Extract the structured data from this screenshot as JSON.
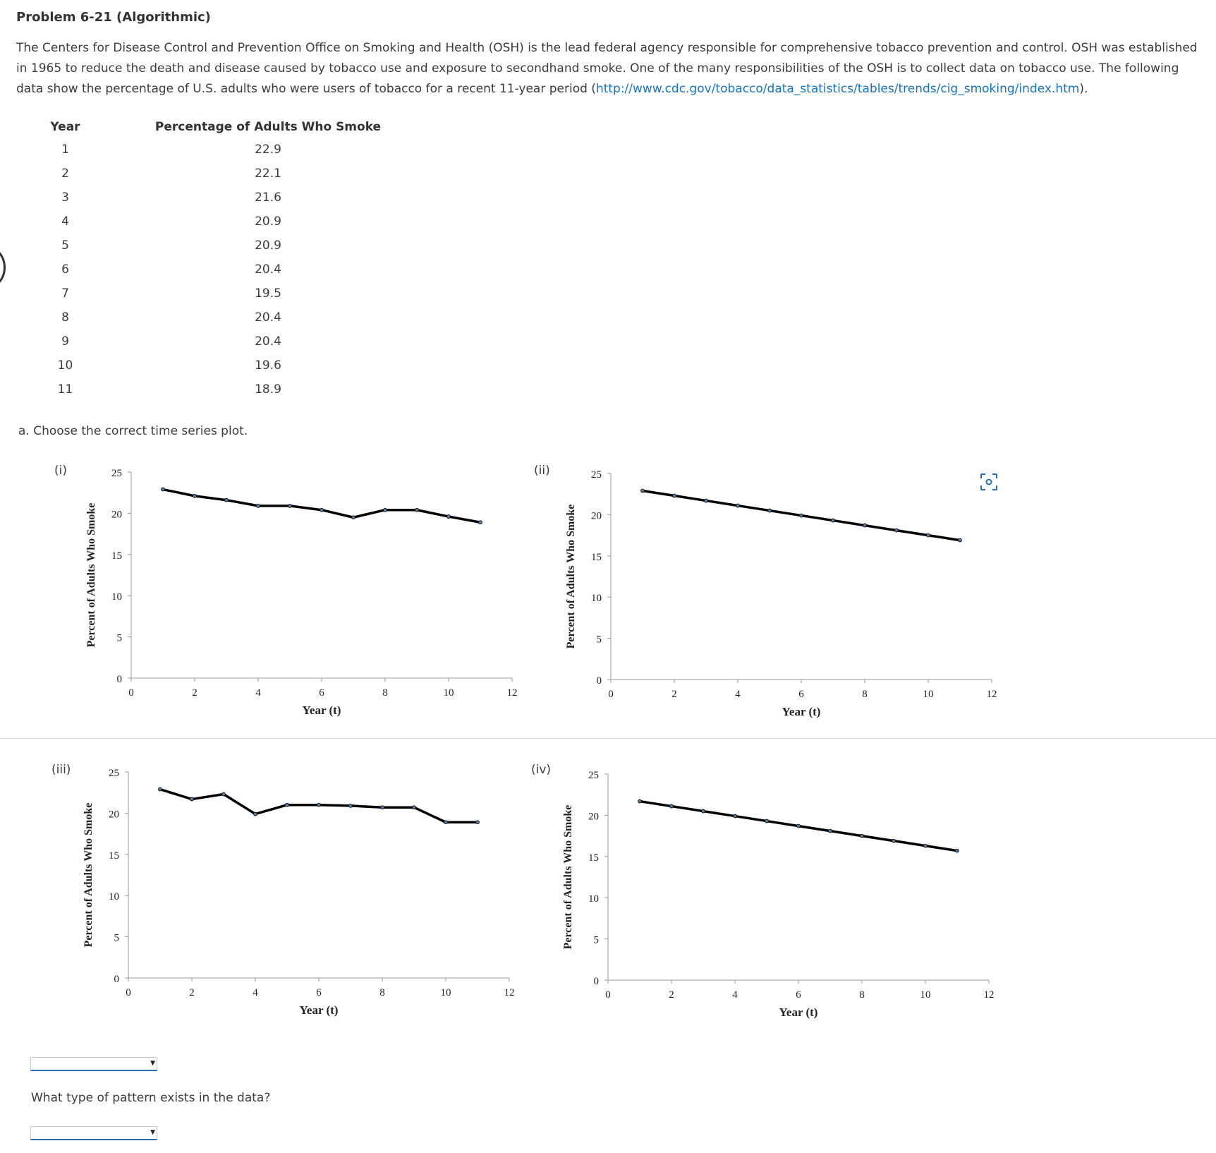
{
  "problem": {
    "title": "Problem 6-21 (Algorithmic)",
    "intro_text": "The Centers for Disease Control and Prevention Office on Smoking and Health (OSH) is the lead federal agency responsible for comprehensive tobacco prevention and control. OSH was established in 1965 to reduce the death and disease caused by tobacco use and exposure to secondhand smoke. One of the many responsibilities of the OSH is to collect data on tobacco use. The following data show the percentage of U.S. adults who were users of tobacco for a recent 11-year period (",
    "link_text": "http://www.cdc.gov/tobacco/data_statistics/tables/trends/cig_smoking/index.htm",
    "intro_end": ")."
  },
  "table": {
    "headers": [
      "Year",
      "Percentage of Adults Who Smoke"
    ],
    "rows": [
      [
        "1",
        "22.9"
      ],
      [
        "2",
        "22.1"
      ],
      [
        "3",
        "21.6"
      ],
      [
        "4",
        "20.9"
      ],
      [
        "5",
        "20.9"
      ],
      [
        "6",
        "20.4"
      ],
      [
        "7",
        "19.5"
      ],
      [
        "8",
        "20.4"
      ],
      [
        "9",
        "20.4"
      ],
      [
        "10",
        "19.6"
      ],
      [
        "11",
        "18.9"
      ]
    ]
  },
  "question_a": "a. Choose the correct time series plot.",
  "question_b": "What type of pattern exists in the data?",
  "answer_a": {
    "selected": ""
  },
  "answer_b": {
    "selected": ""
  },
  "icons": {
    "focus": "focus-capture-icon",
    "select_arrow": "caret-down-icon"
  },
  "colors": {
    "link": "#1a73b8",
    "select_underline": "#2a6db5",
    "series_line": "#000000"
  },
  "chart_data": [
    {
      "label": "(i)",
      "type": "line",
      "xlabel": "Year (t)",
      "ylabel": "Percent of Adults Who Smoke",
      "xlim": [
        0,
        12
      ],
      "ylim": [
        0,
        25
      ],
      "xticks": [
        "0",
        "2",
        "4",
        "6",
        "8",
        "10",
        "12"
      ],
      "yticks": [
        "0",
        "5",
        "10",
        "15",
        "20",
        "25"
      ],
      "x": [
        1,
        2,
        3,
        4,
        5,
        6,
        7,
        8,
        9,
        10,
        11
      ],
      "values": [
        22.9,
        22.1,
        21.6,
        20.9,
        20.9,
        20.4,
        19.5,
        20.4,
        20.4,
        19.6,
        18.9
      ]
    },
    {
      "label": "(ii)",
      "type": "line",
      "xlabel": "Year (t)",
      "ylabel": "Percent of Adults Who Smoke",
      "xlim": [
        0,
        12
      ],
      "ylim": [
        0,
        25
      ],
      "xticks": [
        "0",
        "2",
        "4",
        "6",
        "8",
        "10",
        "12"
      ],
      "yticks": [
        "0",
        "5",
        "10",
        "15",
        "20",
        "25"
      ],
      "x": [
        1,
        2,
        3,
        4,
        5,
        6,
        7,
        8,
        9,
        10,
        11
      ],
      "values": [
        22.9,
        22.3,
        21.7,
        21.1,
        20.5,
        19.9,
        19.3,
        18.7,
        18.1,
        17.5,
        16.9
      ]
    },
    {
      "label": "(iii)",
      "type": "line",
      "xlabel": "Year (t)",
      "ylabel": "Percent of Adults Who Smoke",
      "xlim": [
        0,
        12
      ],
      "ylim": [
        0,
        25
      ],
      "xticks": [
        "0",
        "2",
        "4",
        "6",
        "8",
        "10",
        "12"
      ],
      "yticks": [
        "0",
        "5",
        "10",
        "15",
        "20",
        "25"
      ],
      "x": [
        1,
        2,
        3,
        4,
        5,
        6,
        7,
        8,
        9,
        10,
        11
      ],
      "values": [
        22.9,
        21.7,
        22.3,
        19.9,
        21.0,
        21.0,
        20.9,
        20.7,
        20.7,
        18.9,
        18.9
      ]
    },
    {
      "label": "(iv)",
      "type": "line",
      "xlabel": "Year (t)",
      "ylabel": "Percent of Adults Who Smoke",
      "xlim": [
        0,
        12
      ],
      "ylim": [
        0,
        25
      ],
      "xticks": [
        "0",
        "2",
        "4",
        "6",
        "8",
        "10",
        "12"
      ],
      "yticks": [
        "0",
        "5",
        "10",
        "15",
        "20",
        "25"
      ],
      "x": [
        1,
        2,
        3,
        4,
        5,
        6,
        7,
        8,
        9,
        10,
        11
      ],
      "values": [
        21.7,
        21.1,
        20.5,
        19.9,
        19.3,
        18.7,
        18.1,
        17.5,
        16.9,
        16.3,
        15.7
      ]
    }
  ]
}
